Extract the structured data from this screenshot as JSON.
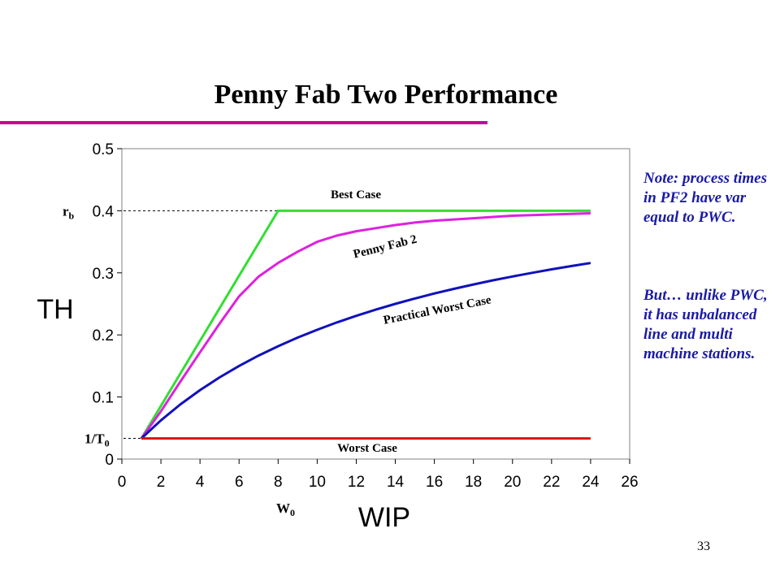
{
  "slide": {
    "title": "Penny Fab Two Performance",
    "note_1": "Note: process times in PF2 have var equal to PWC.",
    "note_2": "But… unlike PWC, it has unbalanced line and multi machine stations.",
    "page_number": "33"
  },
  "colors": {
    "title_rule": "#cc0099",
    "note_text": "#1a1aa6",
    "best_case": "#33dd33",
    "penny_fab_2": "#dd22dd",
    "practical_worst_case": "#1111bb",
    "worst_case": "#dd1111"
  },
  "chart_data": {
    "type": "line",
    "title": "",
    "xlabel": "WIP",
    "ylabel": "TH",
    "xlim": [
      0,
      26
    ],
    "ylim": [
      0,
      0.5
    ],
    "x_ticks": [
      0,
      2,
      4,
      6,
      8,
      10,
      12,
      14,
      16,
      18,
      20,
      22,
      24,
      26
    ],
    "y_ticks": [
      0,
      0.1,
      0.2,
      0.3,
      0.4,
      0.5
    ],
    "y_tick_labels": [
      "0",
      "0.1",
      "0.2",
      "0.3",
      "0.4",
      "0.5"
    ],
    "grid": false,
    "reference_lines": [
      {
        "label": "r",
        "label_sub": "b",
        "axis": "y",
        "value": 0.4
      },
      {
        "label": "1/T",
        "label_sub": "0",
        "axis": "y",
        "value": 0.0333
      }
    ],
    "x_marker": {
      "label": "W",
      "label_sub": "0"
    },
    "series": [
      {
        "name": "Best Case",
        "color_key": "best_case",
        "x": [
          1,
          8,
          24
        ],
        "y": [
          0.0333,
          0.4,
          0.4
        ]
      },
      {
        "name": "Penny Fab 2",
        "color_key": "penny_fab_2",
        "x": [
          1,
          2,
          3,
          4,
          5,
          6,
          7,
          8,
          9,
          10,
          11,
          12,
          13,
          14,
          15,
          16,
          17,
          18,
          19,
          20,
          21,
          22,
          23,
          24
        ],
        "y": [
          0.0333,
          0.077,
          0.125,
          0.172,
          0.218,
          0.262,
          0.294,
          0.316,
          0.334,
          0.35,
          0.36,
          0.367,
          0.372,
          0.377,
          0.381,
          0.384,
          0.386,
          0.388,
          0.39,
          0.392,
          0.393,
          0.394,
          0.395,
          0.396
        ]
      },
      {
        "name": "Practical Worst Case",
        "color_key": "practical_worst_case",
        "x": [
          1,
          2,
          3,
          4,
          5,
          6,
          7,
          8,
          9,
          10,
          11,
          12,
          13,
          14,
          15,
          16,
          17,
          18,
          19,
          20,
          21,
          22,
          23,
          24
        ],
        "y": [
          0.0333,
          0.0625,
          0.0882,
          0.1111,
          0.1316,
          0.15,
          0.1667,
          0.1818,
          0.1957,
          0.2083,
          0.22,
          0.2308,
          0.2407,
          0.25,
          0.2586,
          0.2667,
          0.2742,
          0.2813,
          0.2879,
          0.2941,
          0.3,
          0.3056,
          0.3108,
          0.3158
        ]
      },
      {
        "name": "Worst Case",
        "color_key": "worst_case",
        "x": [
          1,
          24
        ],
        "y": [
          0.0333,
          0.0333
        ]
      }
    ],
    "series_labels": [
      {
        "text": "Best Case",
        "rotation": 0
      },
      {
        "text": "Penny Fab 2",
        "rotation": -14
      },
      {
        "text": "Practical Worst Case",
        "rotation": -11
      },
      {
        "text": "Worst Case",
        "rotation": 0
      }
    ]
  }
}
